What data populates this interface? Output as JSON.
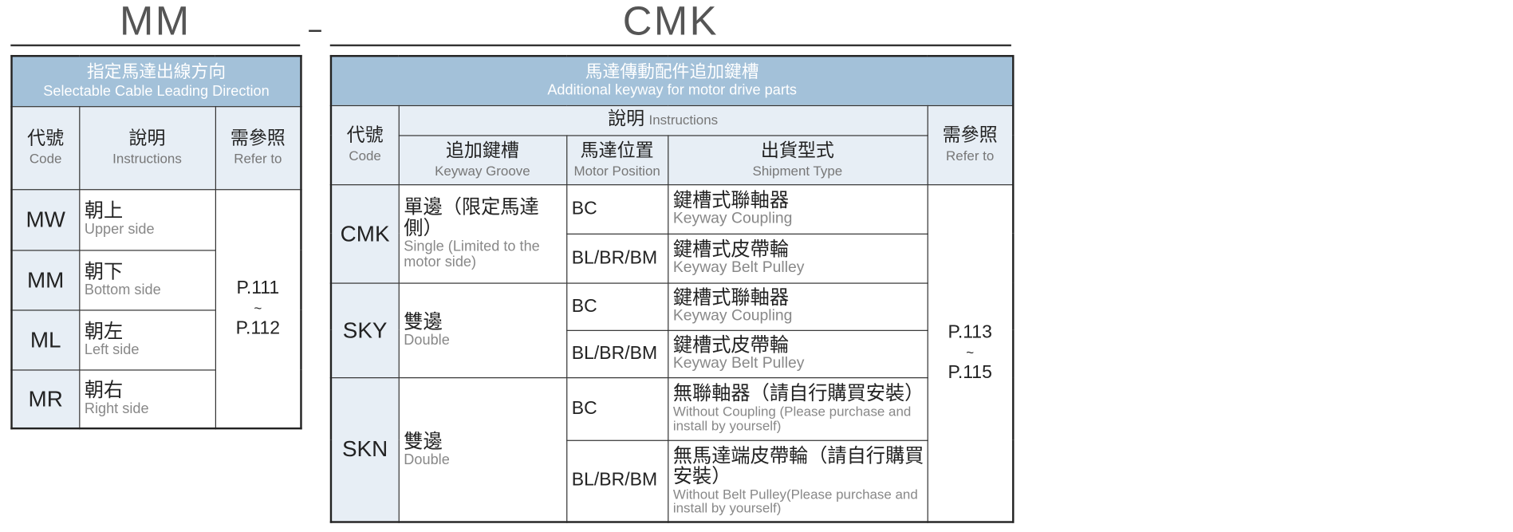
{
  "titles": {
    "left": "MM",
    "separator": "–",
    "right": "CMK"
  },
  "cable_table": {
    "title_zh": "指定馬達出線方向",
    "title_en": "Selectable Cable Leading Direction",
    "headers": {
      "code_zh": "代號",
      "code_en": "Code",
      "instr_zh": "說明",
      "instr_en": "Instructions",
      "ref_zh": "需參照",
      "ref_en": "Refer to"
    },
    "rows": [
      {
        "code": "MW",
        "zh": "朝上",
        "en": "Upper side"
      },
      {
        "code": "MM",
        "zh": "朝下",
        "en": "Bottom side"
      },
      {
        "code": "ML",
        "zh": "朝左",
        "en": "Left side"
      },
      {
        "code": "MR",
        "zh": "朝右",
        "en": "Right side"
      }
    ],
    "ref": {
      "from": "P.111",
      "tilde": "~",
      "to": "P.112"
    }
  },
  "keyway_table": {
    "title_zh": "馬達傳動配件追加鍵槽",
    "title_en": "Additional keyway for motor drive parts",
    "headers": {
      "code_zh": "代號",
      "code_en": "Code",
      "instr_zh": "說明",
      "instr_en": "Instructions",
      "groove_zh": "追加鍵槽",
      "groove_en": "Keyway Groove",
      "pos_zh": "馬達位置",
      "pos_en": "Motor Position",
      "ship_zh": "出貨型式",
      "ship_en": "Shipment Type",
      "ref_zh": "需參照",
      "ref_en": "Refer to"
    },
    "groups": [
      {
        "code": "CMK",
        "groove_zh": "單邊（限定馬達側）",
        "groove_en": "Single (Limited to the motor side)",
        "rows": [
          {
            "pos": "BC",
            "zh": "鍵槽式聯軸器",
            "en": "Keyway Coupling"
          },
          {
            "pos": "BL/BR/BM",
            "zh": "鍵槽式皮帶輪",
            "en": "Keyway Belt Pulley"
          }
        ]
      },
      {
        "code": "SKY",
        "groove_zh": "雙邊",
        "groove_en": "Double",
        "rows": [
          {
            "pos": "BC",
            "zh": "鍵槽式聯軸器",
            "en": "Keyway Coupling"
          },
          {
            "pos": "BL/BR/BM",
            "zh": "鍵槽式皮帶輪",
            "en": "Keyway Belt Pulley"
          }
        ]
      },
      {
        "code": "SKN",
        "groove_zh": "雙邊",
        "groove_en": "Double",
        "rows": [
          {
            "pos": "BC",
            "zh": "無聯軸器（請自行購買安裝）",
            "en": "Without Coupling (Please purchase and install by yourself)"
          },
          {
            "pos": "BL/BR/BM",
            "zh": "無馬達端皮帶輪（請自行購買安裝）",
            "en": "Without Belt Pulley(Please purchase and install by yourself)"
          }
        ]
      }
    ],
    "ref": {
      "from": "P.113",
      "tilde": "~",
      "to": "P.115"
    }
  },
  "colors": {
    "header_band": "#a3c1d9",
    "header_cell": "#e7eef5",
    "title": "#555555"
  }
}
